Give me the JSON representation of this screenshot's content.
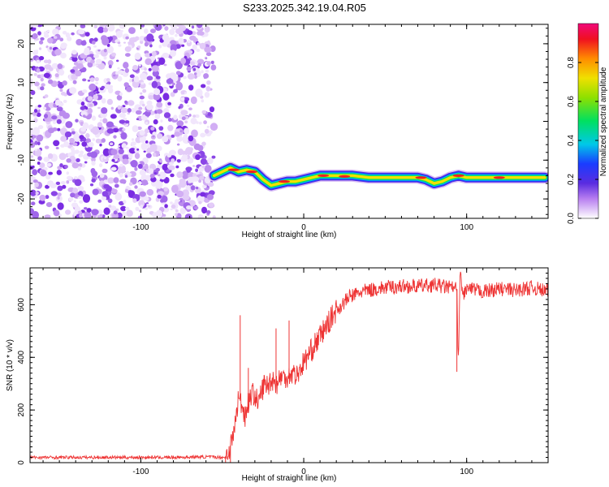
{
  "title": "S233.2025.342.19.04.R05",
  "chart_data": [
    {
      "type": "heatmap",
      "xlabel": "Height of straight line (km)",
      "ylabel": "Frequency (Hz)",
      "xlim": [
        -168,
        150
      ],
      "ylim": [
        -25,
        25
      ],
      "xticks": [
        -100,
        0,
        100
      ],
      "yticks": [
        -20,
        -10,
        0,
        10,
        20
      ],
      "grid": false,
      "noise_region_x": [
        -168,
        -55
      ],
      "signal_band": {
        "x": [
          -55,
          -50,
          -45,
          -40,
          -35,
          -30,
          -25,
          -20,
          -15,
          -10,
          -5,
          0,
          5,
          10,
          20,
          30,
          40,
          50,
          60,
          70,
          75,
          80,
          85,
          90,
          95,
          100,
          110,
          120,
          130,
          140,
          148
        ],
        "freq": [
          -14,
          -13,
          -12,
          -13,
          -12.5,
          -13,
          -15,
          -16.5,
          -16,
          -15.5,
          -15.5,
          -15,
          -14.5,
          -14,
          -14,
          -14,
          -14.5,
          -14.5,
          -14.5,
          -14.5,
          -15,
          -16,
          -15.5,
          -14.5,
          -14,
          -14.5,
          -14.5,
          -14.5,
          -14.5,
          -14.5,
          -14.5
        ]
      },
      "colorbar": {
        "label": "Normalized spectral amplitude",
        "range": [
          0,
          1
        ],
        "ticks": [
          "0.0",
          "0.2",
          "0.4",
          "0.6",
          "0.8"
        ]
      }
    },
    {
      "type": "line",
      "xlabel": "Height of straight line (km)",
      "ylabel": "SNR (10 * v/v)",
      "xlim": [
        -168,
        150
      ],
      "ylim": [
        0,
        740
      ],
      "xticks": [
        -100,
        0,
        100
      ],
      "yticks": [
        0,
        200,
        400,
        600
      ],
      "grid": false,
      "series": [
        {
          "color": "#ee3333",
          "x": [
            -168,
            -140,
            -110,
            -80,
            -60,
            -48,
            -44,
            -42,
            -40,
            -38,
            -36,
            -34,
            -32,
            -30,
            -28,
            -26,
            -24,
            -22,
            -20,
            -18,
            -16,
            -14,
            -12,
            -10,
            -8,
            -6,
            -4,
            -2,
            0,
            2,
            4,
            6,
            8,
            10,
            12,
            14,
            16,
            18,
            20,
            22,
            25,
            28,
            32,
            36,
            40,
            45,
            50,
            60,
            70,
            80,
            90,
            94,
            95,
            96,
            97,
            98,
            100,
            110,
            120,
            130,
            140,
            150
          ],
          "y": [
            20,
            20,
            20,
            20,
            22,
            20,
            80,
            150,
            250,
            220,
            180,
            230,
            260,
            260,
            220,
            270,
            300,
            290,
            320,
            310,
            300,
            330,
            320,
            330,
            340,
            340,
            330,
            360,
            380,
            400,
            420,
            440,
            460,
            480,
            500,
            520,
            540,
            560,
            580,
            590,
            610,
            630,
            640,
            650,
            655,
            660,
            665,
            670,
            670,
            675,
            665,
            660,
            345,
            760,
            650,
            640,
            660,
            650,
            660,
            655,
            665,
            650
          ],
          "spikes": [
            [
              -48,
              0
            ],
            [
              -45,
              0
            ],
            [
              -39,
              560
            ],
            [
              -34,
              360
            ],
            [
              -17,
              510
            ],
            [
              -9,
              540
            ],
            [
              94,
              345
            ],
            [
              96,
              760
            ]
          ]
        }
      ]
    }
  ]
}
